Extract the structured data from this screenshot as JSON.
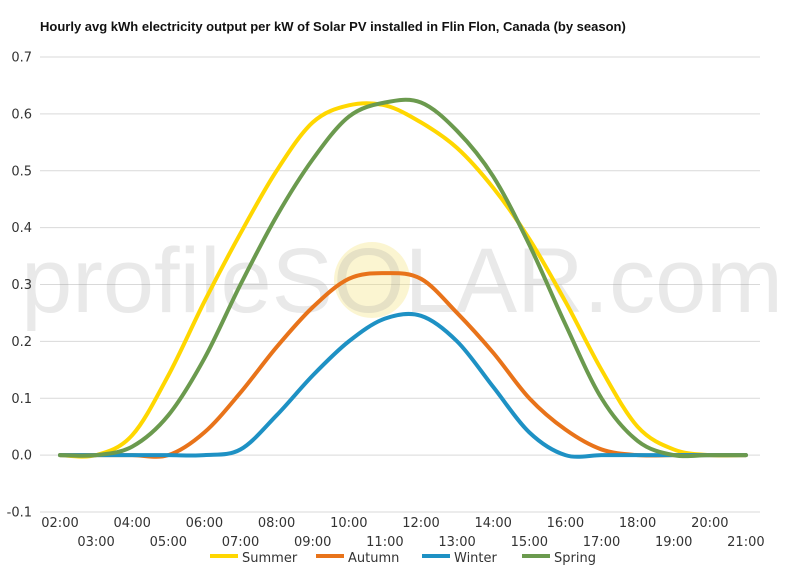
{
  "chart_data": {
    "type": "line",
    "title": "Hourly avg kWh electricity output per kW of Solar PV installed in Flin Flon, Canada (by season)",
    "xlabel": "",
    "ylabel": "",
    "x": [
      "02:00",
      "03:00",
      "04:00",
      "05:00",
      "06:00",
      "07:00",
      "08:00",
      "09:00",
      "10:00",
      "11:00",
      "12:00",
      "13:00",
      "14:00",
      "15:00",
      "16:00",
      "17:00",
      "18:00",
      "19:00",
      "20:00",
      "21:00"
    ],
    "ylim": [
      -0.1,
      0.7
    ],
    "yticks": [
      -0.1,
      0.0,
      0.1,
      0.2,
      0.3,
      0.4,
      0.5,
      0.6,
      0.7
    ],
    "ytick_labels": [
      "-0.1",
      "0.0",
      "0.1",
      "0.2",
      "0.3",
      "0.4",
      "0.5",
      "0.6",
      "0.7"
    ],
    "grid": true,
    "legend_position": "bottom",
    "series": [
      {
        "name": "Summer",
        "color": "#FFD700",
        "values": [
          0.0,
          0.0,
          0.035,
          0.14,
          0.27,
          0.39,
          0.5,
          0.585,
          0.615,
          0.615,
          0.585,
          0.54,
          0.47,
          0.38,
          0.27,
          0.15,
          0.05,
          0.01,
          0.0,
          0.0
        ]
      },
      {
        "name": "Autumn",
        "color": "#E8731A",
        "values": [
          0.0,
          0.0,
          0.0,
          0.0,
          0.04,
          0.11,
          0.19,
          0.26,
          0.31,
          0.32,
          0.31,
          0.25,
          0.18,
          0.1,
          0.045,
          0.01,
          0.0,
          0.0,
          0.0,
          0.0
        ]
      },
      {
        "name": "Winter",
        "color": "#1E91C4",
        "values": [
          0.0,
          0.0,
          0.0,
          0.0,
          0.0,
          0.01,
          0.07,
          0.14,
          0.2,
          0.24,
          0.245,
          0.2,
          0.12,
          0.04,
          0.0,
          0.0,
          0.0,
          0.0,
          0.0,
          0.0
        ]
      },
      {
        "name": "Spring",
        "color": "#6B9A4E",
        "values": [
          0.0,
          0.0,
          0.015,
          0.07,
          0.17,
          0.3,
          0.42,
          0.52,
          0.595,
          0.62,
          0.62,
          0.57,
          0.49,
          0.37,
          0.23,
          0.1,
          0.025,
          0.0,
          0.0,
          0.0
        ]
      }
    ]
  },
  "watermark": {
    "text": "profileSOLAR.com"
  }
}
